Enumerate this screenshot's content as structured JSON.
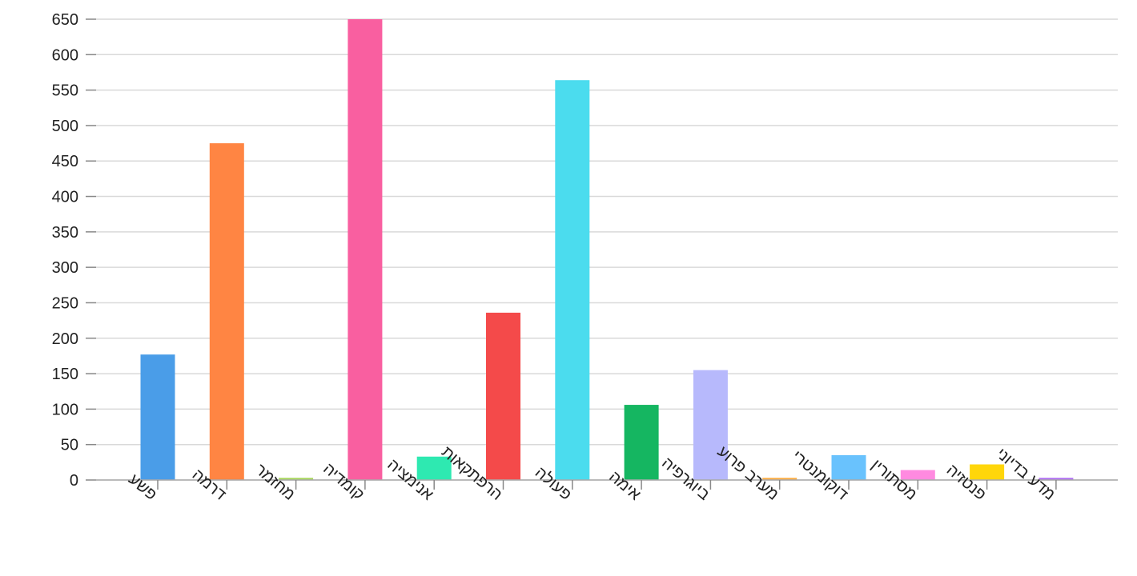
{
  "chart_data": {
    "type": "bar",
    "categories": [
      "פשע",
      "דרמה",
      "מחזמר",
      "קומדיה",
      "אנימציה",
      "הרפתקאות",
      "פעולה",
      "אימה",
      "ביוגרפיה",
      "מערב פרוע",
      "דוקומנטרי",
      "מסתורין",
      "פנטזיה",
      "מדע בדיוני"
    ],
    "values": [
      177,
      475,
      3,
      650,
      33,
      236,
      564,
      106,
      155,
      3,
      35,
      14,
      22,
      3
    ],
    "colors": [
      "#4a9de8",
      "#ff8543",
      "#a6d65a",
      "#f95fa0",
      "#2ee9b1",
      "#f44a4a",
      "#4bdcee",
      "#15b661",
      "#b7b9fc",
      "#ffab40",
      "#69c2fd",
      "#ff8ae0",
      "#ffd60a",
      "#ad6cf1"
    ],
    "ylim": [
      0,
      650
    ],
    "yticks": [
      0,
      50,
      100,
      150,
      200,
      250,
      300,
      350,
      400,
      450,
      500,
      550,
      600,
      650
    ],
    "grid": true,
    "legend": "none"
  }
}
